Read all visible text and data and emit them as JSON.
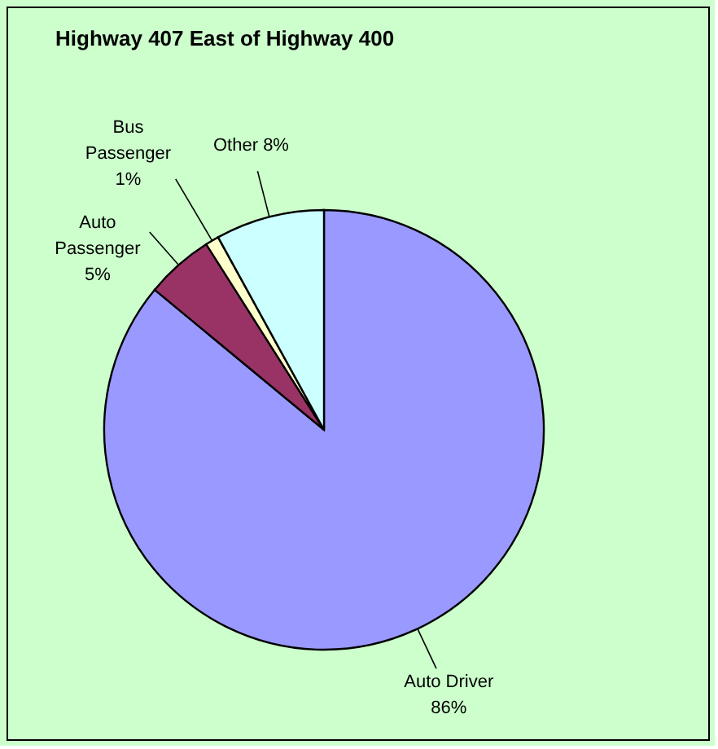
{
  "chart_data": {
    "type": "pie",
    "title": "Highway 407 East of Highway 400",
    "categories": [
      "Auto Driver",
      "Auto Passenger",
      "Bus Passenger",
      "Other"
    ],
    "values": [
      86,
      5,
      1,
      8
    ],
    "colors": [
      "#9999ff",
      "#993366",
      "#ffffcc",
      "#ccffff"
    ],
    "value_labels": [
      "86%",
      "5%",
      "1%",
      "8%"
    ]
  }
}
